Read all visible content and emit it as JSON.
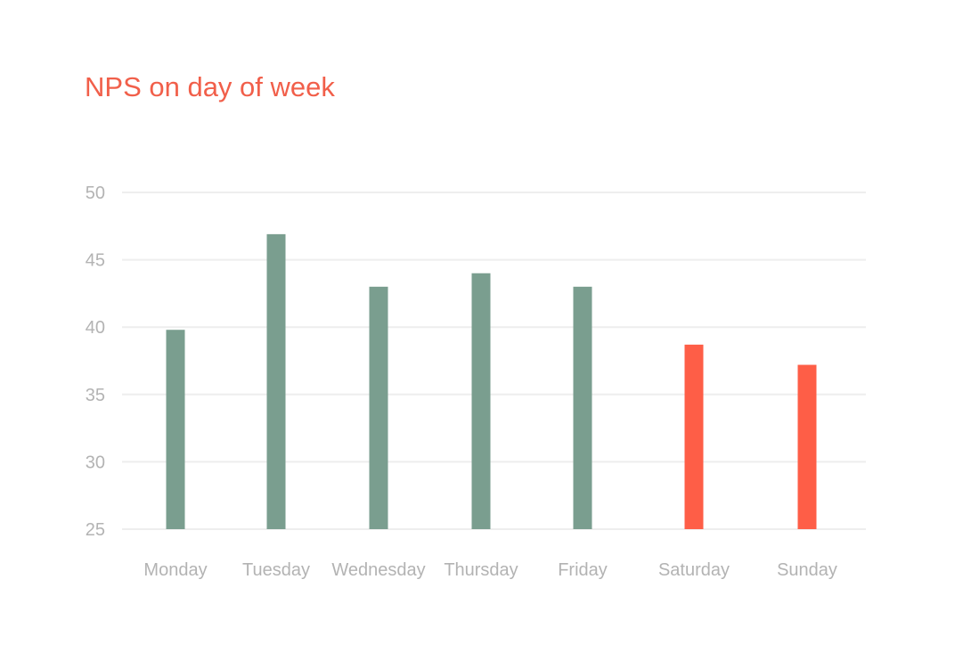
{
  "chart_data": {
    "type": "bar",
    "title": "NPS on day of week",
    "xlabel": "",
    "ylabel": "",
    "categories": [
      "Monday",
      "Tuesday",
      "Wednesday",
      "Thursday",
      "Friday",
      "Saturday",
      "Sunday"
    ],
    "values": [
      39.8,
      46.9,
      43.0,
      44.0,
      43.0,
      38.7,
      37.2
    ],
    "bar_colors": [
      "#7a9e8f",
      "#7a9e8f",
      "#7a9e8f",
      "#7a9e8f",
      "#7a9e8f",
      "#fe5e47",
      "#fe5e47"
    ],
    "y_ticks": [
      25,
      30,
      35,
      40,
      45,
      50
    ],
    "ylim": [
      25,
      50
    ],
    "grid": true,
    "legend": "none"
  },
  "colors": {
    "title": "#f15f4a",
    "weekday_bar": "#7a9e8f",
    "weekend_bar": "#fe5e47",
    "axis_text": "#b3b3b3",
    "grid": "#eeeeee"
  }
}
